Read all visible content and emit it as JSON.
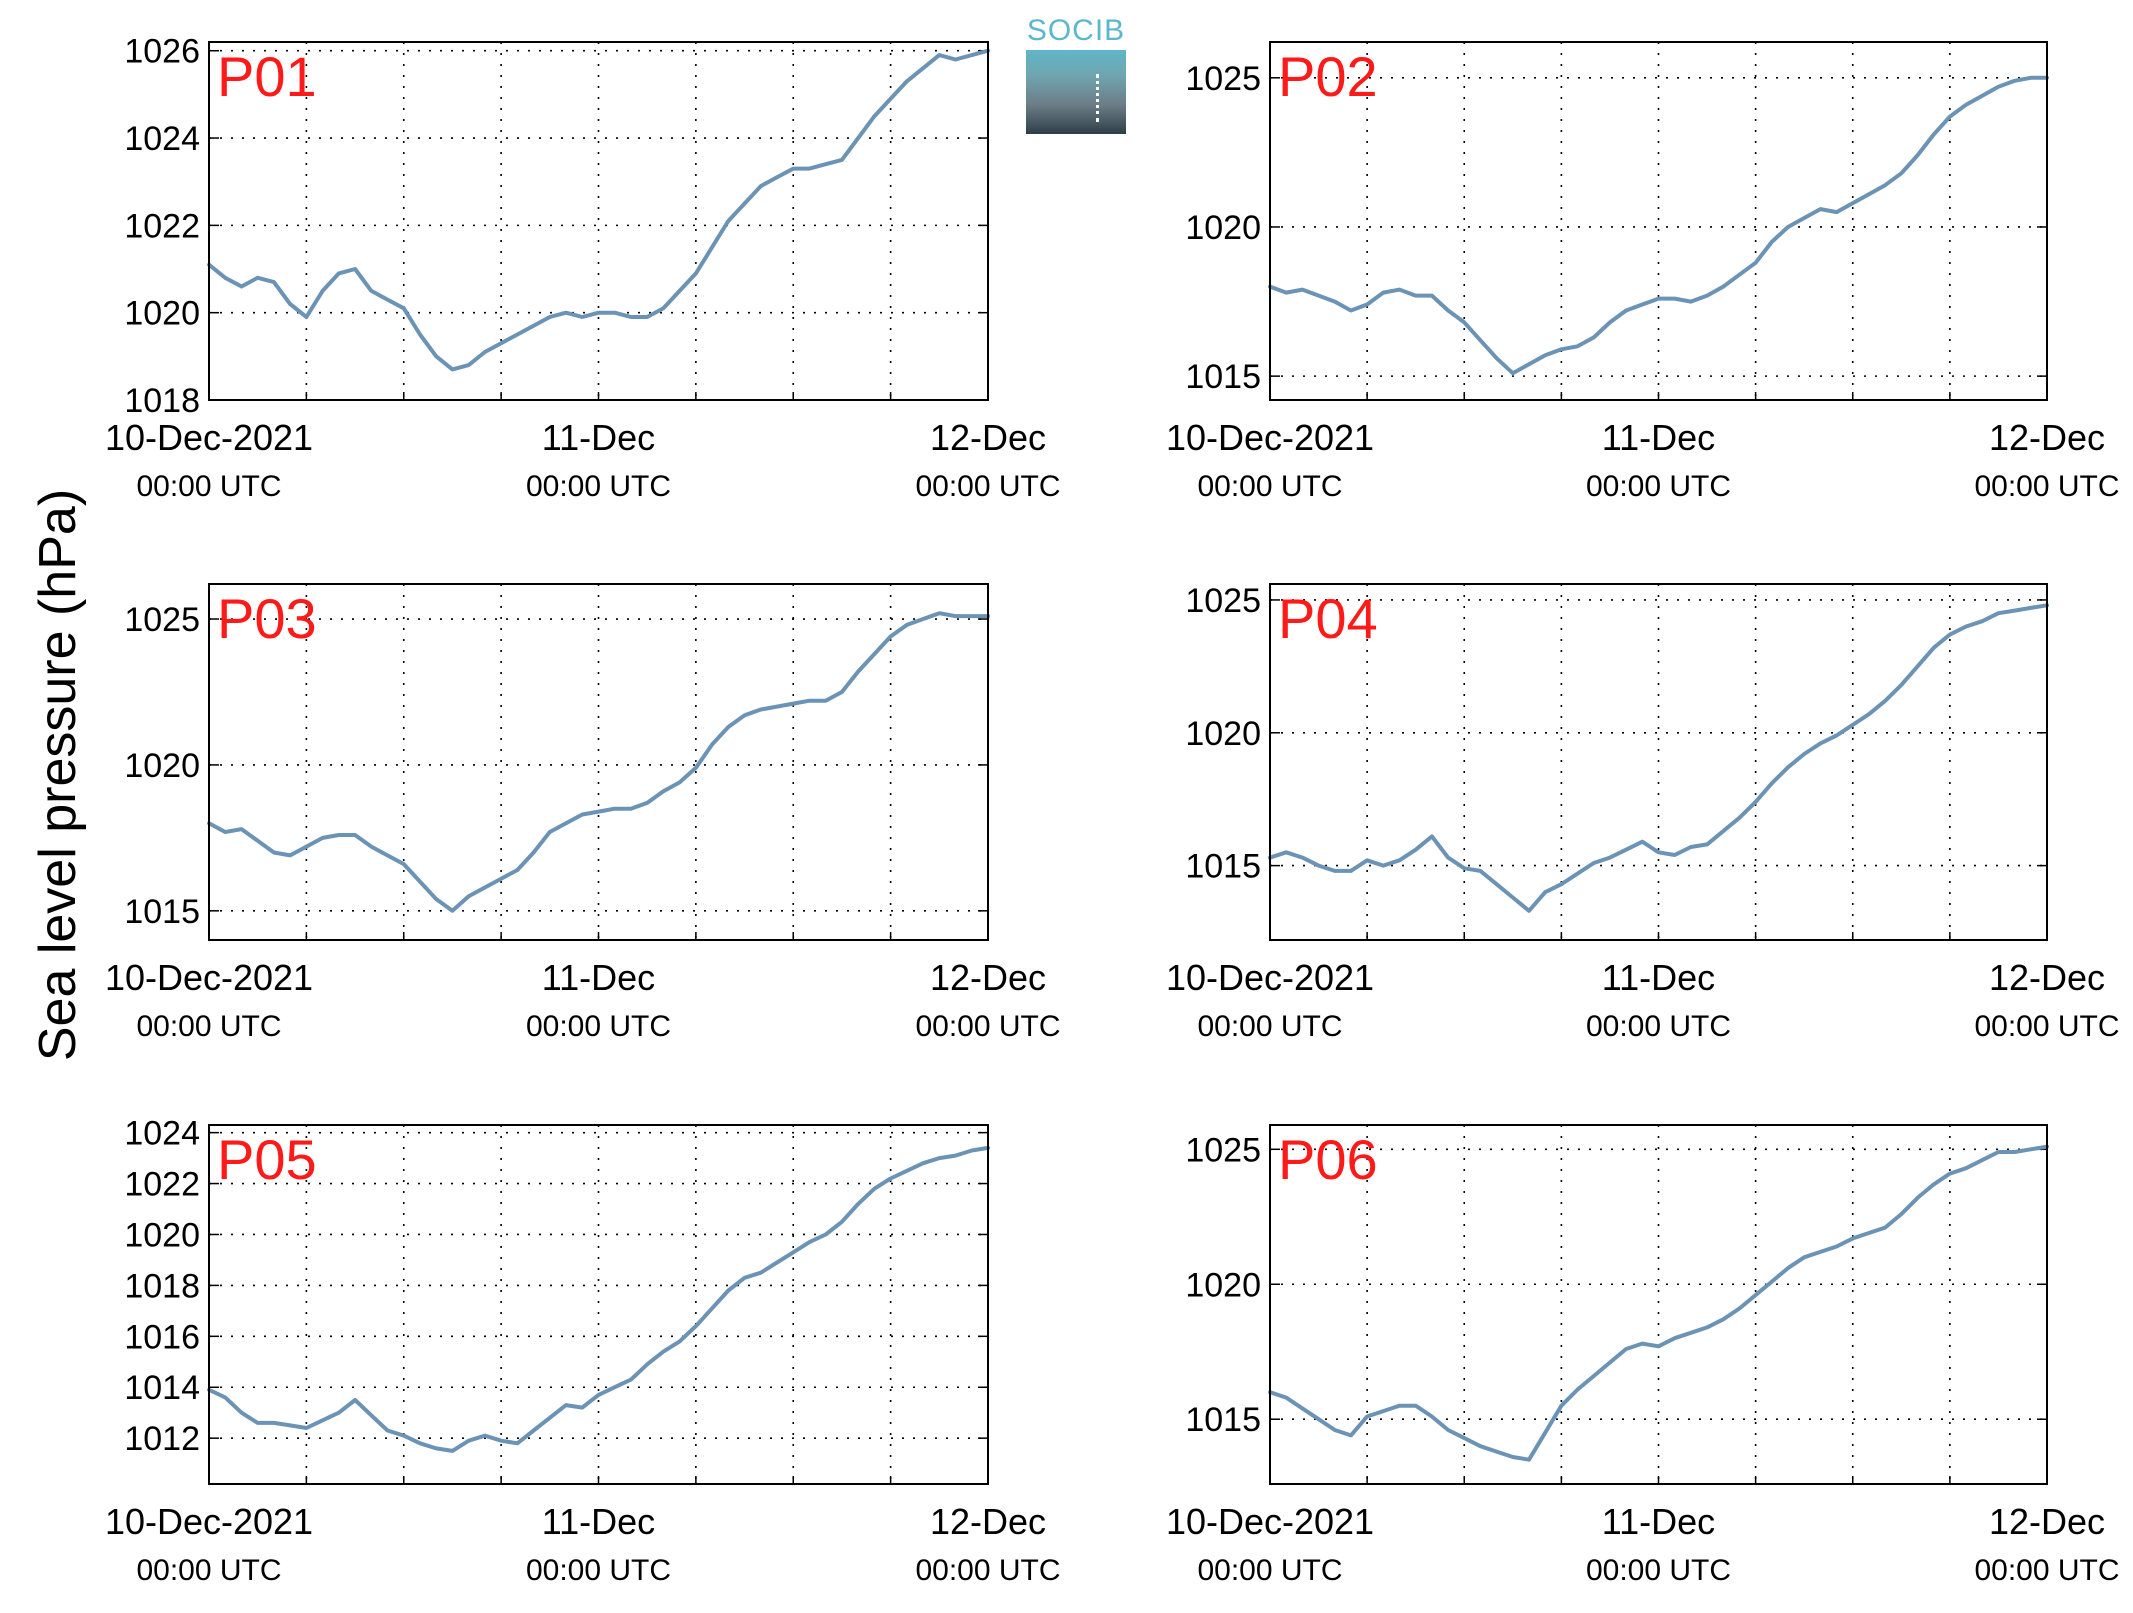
{
  "figure": {
    "ylabel": "Sea level pressure (hPa)",
    "line_color": "#6b93b5",
    "panel_label_color": "#ff1a1a",
    "logo": {
      "text": "SOCIB",
      "color": "#5bb8cc"
    }
  },
  "chart_data": [
    {
      "type": "line",
      "label": "P01",
      "xticks": [
        "10-Dec-2021",
        "11-Dec",
        "12-Dec"
      ],
      "xsub": "00:00 UTC",
      "xlim_hours": [
        0,
        48
      ],
      "ylim": [
        1018,
        1026.2
      ],
      "yticks": [
        1018,
        1020,
        1022,
        1024,
        1026
      ],
      "x_hours": [
        0,
        1,
        2,
        3,
        4,
        5,
        6,
        7,
        8,
        9,
        10,
        11,
        12,
        13,
        14,
        15,
        16,
        17,
        18,
        19,
        20,
        21,
        22,
        23,
        24,
        25,
        26,
        27,
        28,
        29,
        30,
        31,
        32,
        33,
        34,
        35,
        36,
        37,
        38,
        39,
        40,
        41,
        42,
        43,
        44,
        45,
        46,
        47,
        48
      ],
      "values": [
        1021.1,
        1020.8,
        1020.6,
        1020.8,
        1020.7,
        1020.2,
        1019.9,
        1020.5,
        1020.9,
        1021.0,
        1020.5,
        1020.3,
        1020.1,
        1019.5,
        1019.0,
        1018.7,
        1018.8,
        1019.1,
        1019.3,
        1019.5,
        1019.7,
        1019.9,
        1020.0,
        1019.9,
        1020.0,
        1020.0,
        1019.9,
        1019.9,
        1020.1,
        1020.5,
        1020.9,
        1021.5,
        1022.1,
        1022.5,
        1022.9,
        1023.1,
        1023.3,
        1023.3,
        1023.4,
        1023.5,
        1024.0,
        1024.5,
        1024.9,
        1025.3,
        1025.6,
        1025.9,
        1025.8,
        1025.9,
        1026.0
      ]
    },
    {
      "type": "line",
      "label": "P02",
      "xticks": [
        "10-Dec-2021",
        "11-Dec",
        "12-Dec"
      ],
      "xsub": "00:00 UTC",
      "xlim_hours": [
        0,
        48
      ],
      "ylim": [
        1014.2,
        1026.2
      ],
      "yticks": [
        1015,
        1020,
        1025
      ],
      "x_hours": [
        0,
        1,
        2,
        3,
        4,
        5,
        6,
        7,
        8,
        9,
        10,
        11,
        12,
        13,
        14,
        15,
        16,
        17,
        18,
        19,
        20,
        21,
        22,
        23,
        24,
        25,
        26,
        27,
        28,
        29,
        30,
        31,
        32,
        33,
        34,
        35,
        36,
        37,
        38,
        39,
        40,
        41,
        42,
        43,
        44,
        45,
        46,
        47,
        48
      ],
      "values": [
        1018.0,
        1017.8,
        1017.9,
        1017.7,
        1017.5,
        1017.2,
        1017.4,
        1017.8,
        1017.9,
        1017.7,
        1017.7,
        1017.2,
        1016.8,
        1016.2,
        1015.6,
        1015.1,
        1015.4,
        1015.7,
        1015.9,
        1016.0,
        1016.3,
        1016.8,
        1017.2,
        1017.4,
        1017.6,
        1017.6,
        1017.5,
        1017.7,
        1018.0,
        1018.4,
        1018.8,
        1019.5,
        1020.0,
        1020.3,
        1020.6,
        1020.5,
        1020.8,
        1021.1,
        1021.4,
        1021.8,
        1022.4,
        1023.1,
        1023.7,
        1024.1,
        1024.4,
        1024.7,
        1024.9,
        1025.0,
        1025.0
      ]
    },
    {
      "type": "line",
      "label": "P03",
      "xticks": [
        "10-Dec-2021",
        "11-Dec",
        "12-Dec"
      ],
      "xsub": "00:00 UTC",
      "xlim_hours": [
        0,
        48
      ],
      "ylim": [
        1014,
        1026.2
      ],
      "yticks": [
        1015,
        1020,
        1025
      ],
      "x_hours": [
        0,
        1,
        2,
        3,
        4,
        5,
        6,
        7,
        8,
        9,
        10,
        11,
        12,
        13,
        14,
        15,
        16,
        17,
        18,
        19,
        20,
        21,
        22,
        23,
        24,
        25,
        26,
        27,
        28,
        29,
        30,
        31,
        32,
        33,
        34,
        35,
        36,
        37,
        38,
        39,
        40,
        41,
        42,
        43,
        44,
        45,
        46,
        47,
        48
      ],
      "values": [
        1018.0,
        1017.7,
        1017.8,
        1017.4,
        1017.0,
        1016.9,
        1017.2,
        1017.5,
        1017.6,
        1017.6,
        1017.2,
        1016.9,
        1016.6,
        1016.0,
        1015.4,
        1015.0,
        1015.5,
        1015.8,
        1016.1,
        1016.4,
        1017.0,
        1017.7,
        1018.0,
        1018.3,
        1018.4,
        1018.5,
        1018.5,
        1018.7,
        1019.1,
        1019.4,
        1019.9,
        1020.7,
        1021.3,
        1021.7,
        1021.9,
        1022.0,
        1022.1,
        1022.2,
        1022.2,
        1022.5,
        1023.2,
        1023.8,
        1024.4,
        1024.8,
        1025.0,
        1025.2,
        1025.1,
        1025.1,
        1025.1
      ]
    },
    {
      "type": "line",
      "label": "P04",
      "xticks": [
        "10-Dec-2021",
        "11-Dec",
        "12-Dec"
      ],
      "xsub": "00:00 UTC",
      "xlim_hours": [
        0,
        48
      ],
      "ylim": [
        1012.2,
        1025.6
      ],
      "yticks": [
        1015,
        1020,
        1025
      ],
      "x_hours": [
        0,
        1,
        2,
        3,
        4,
        5,
        6,
        7,
        8,
        9,
        10,
        11,
        12,
        13,
        14,
        15,
        16,
        17,
        18,
        19,
        20,
        21,
        22,
        23,
        24,
        25,
        26,
        27,
        28,
        29,
        30,
        31,
        32,
        33,
        34,
        35,
        36,
        37,
        38,
        39,
        40,
        41,
        42,
        43,
        44,
        45,
        46,
        47,
        48
      ],
      "values": [
        1015.3,
        1015.5,
        1015.3,
        1015.0,
        1014.8,
        1014.8,
        1015.2,
        1015.0,
        1015.2,
        1015.6,
        1016.1,
        1015.3,
        1014.9,
        1014.8,
        1014.3,
        1013.8,
        1013.3,
        1014.0,
        1014.3,
        1014.7,
        1015.1,
        1015.3,
        1015.6,
        1015.9,
        1015.5,
        1015.4,
        1015.7,
        1015.8,
        1016.3,
        1016.8,
        1017.4,
        1018.1,
        1018.7,
        1019.2,
        1019.6,
        1019.9,
        1020.3,
        1020.7,
        1021.2,
        1021.8,
        1022.5,
        1023.2,
        1023.7,
        1024.0,
        1024.2,
        1024.5,
        1024.6,
        1024.7,
        1024.8
      ]
    },
    {
      "type": "line",
      "label": "P05",
      "xticks": [
        "10-Dec-2021",
        "11-Dec",
        "12-Dec"
      ],
      "xsub": "00:00 UTC",
      "xlim_hours": [
        0,
        48
      ],
      "ylim": [
        1010.2,
        1024.3
      ],
      "yticks": [
        1012,
        1014,
        1016,
        1018,
        1020,
        1022,
        1024
      ],
      "x_hours": [
        0,
        1,
        2,
        3,
        4,
        5,
        6,
        7,
        8,
        9,
        10,
        11,
        12,
        13,
        14,
        15,
        16,
        17,
        18,
        19,
        20,
        21,
        22,
        23,
        24,
        25,
        26,
        27,
        28,
        29,
        30,
        31,
        32,
        33,
        34,
        35,
        36,
        37,
        38,
        39,
        40,
        41,
        42,
        43,
        44,
        45,
        46,
        47,
        48
      ],
      "values": [
        1013.9,
        1013.6,
        1013.0,
        1012.6,
        1012.6,
        1012.5,
        1012.4,
        1012.7,
        1013.0,
        1013.5,
        1012.9,
        1012.3,
        1012.1,
        1011.8,
        1011.6,
        1011.5,
        1011.9,
        1012.1,
        1011.9,
        1011.8,
        1012.3,
        1012.8,
        1013.3,
        1013.2,
        1013.7,
        1014.0,
        1014.3,
        1014.9,
        1015.4,
        1015.8,
        1016.4,
        1017.1,
        1017.8,
        1018.3,
        1018.5,
        1018.9,
        1019.3,
        1019.7,
        1020.0,
        1020.5,
        1021.2,
        1021.8,
        1022.2,
        1022.5,
        1022.8,
        1023.0,
        1023.1,
        1023.3,
        1023.4
      ]
    },
    {
      "type": "line",
      "label": "P06",
      "xticks": [
        "10-Dec-2021",
        "11-Dec",
        "12-Dec"
      ],
      "xsub": "00:00 UTC",
      "xlim_hours": [
        0,
        48
      ],
      "ylim": [
        1012.6,
        1025.9
      ],
      "yticks": [
        1015,
        1020,
        1025
      ],
      "x_hours": [
        0,
        1,
        2,
        3,
        4,
        5,
        6,
        7,
        8,
        9,
        10,
        11,
        12,
        13,
        14,
        15,
        16,
        17,
        18,
        19,
        20,
        21,
        22,
        23,
        24,
        25,
        26,
        27,
        28,
        29,
        30,
        31,
        32,
        33,
        34,
        35,
        36,
        37,
        38,
        39,
        40,
        41,
        42,
        43,
        44,
        45,
        46,
        47,
        48
      ],
      "values": [
        1016.0,
        1015.8,
        1015.4,
        1015.0,
        1014.6,
        1014.4,
        1015.1,
        1015.3,
        1015.5,
        1015.5,
        1015.1,
        1014.6,
        1014.3,
        1014.0,
        1013.8,
        1013.6,
        1013.5,
        1014.5,
        1015.5,
        1016.1,
        1016.6,
        1017.1,
        1017.6,
        1017.8,
        1017.7,
        1018.0,
        1018.2,
        1018.4,
        1018.7,
        1019.1,
        1019.6,
        1020.1,
        1020.6,
        1021.0,
        1021.2,
        1021.4,
        1021.7,
        1021.9,
        1022.1,
        1022.6,
        1023.2,
        1023.7,
        1024.1,
        1024.3,
        1024.6,
        1024.9,
        1024.9,
        1025.0,
        1025.1
      ]
    }
  ]
}
